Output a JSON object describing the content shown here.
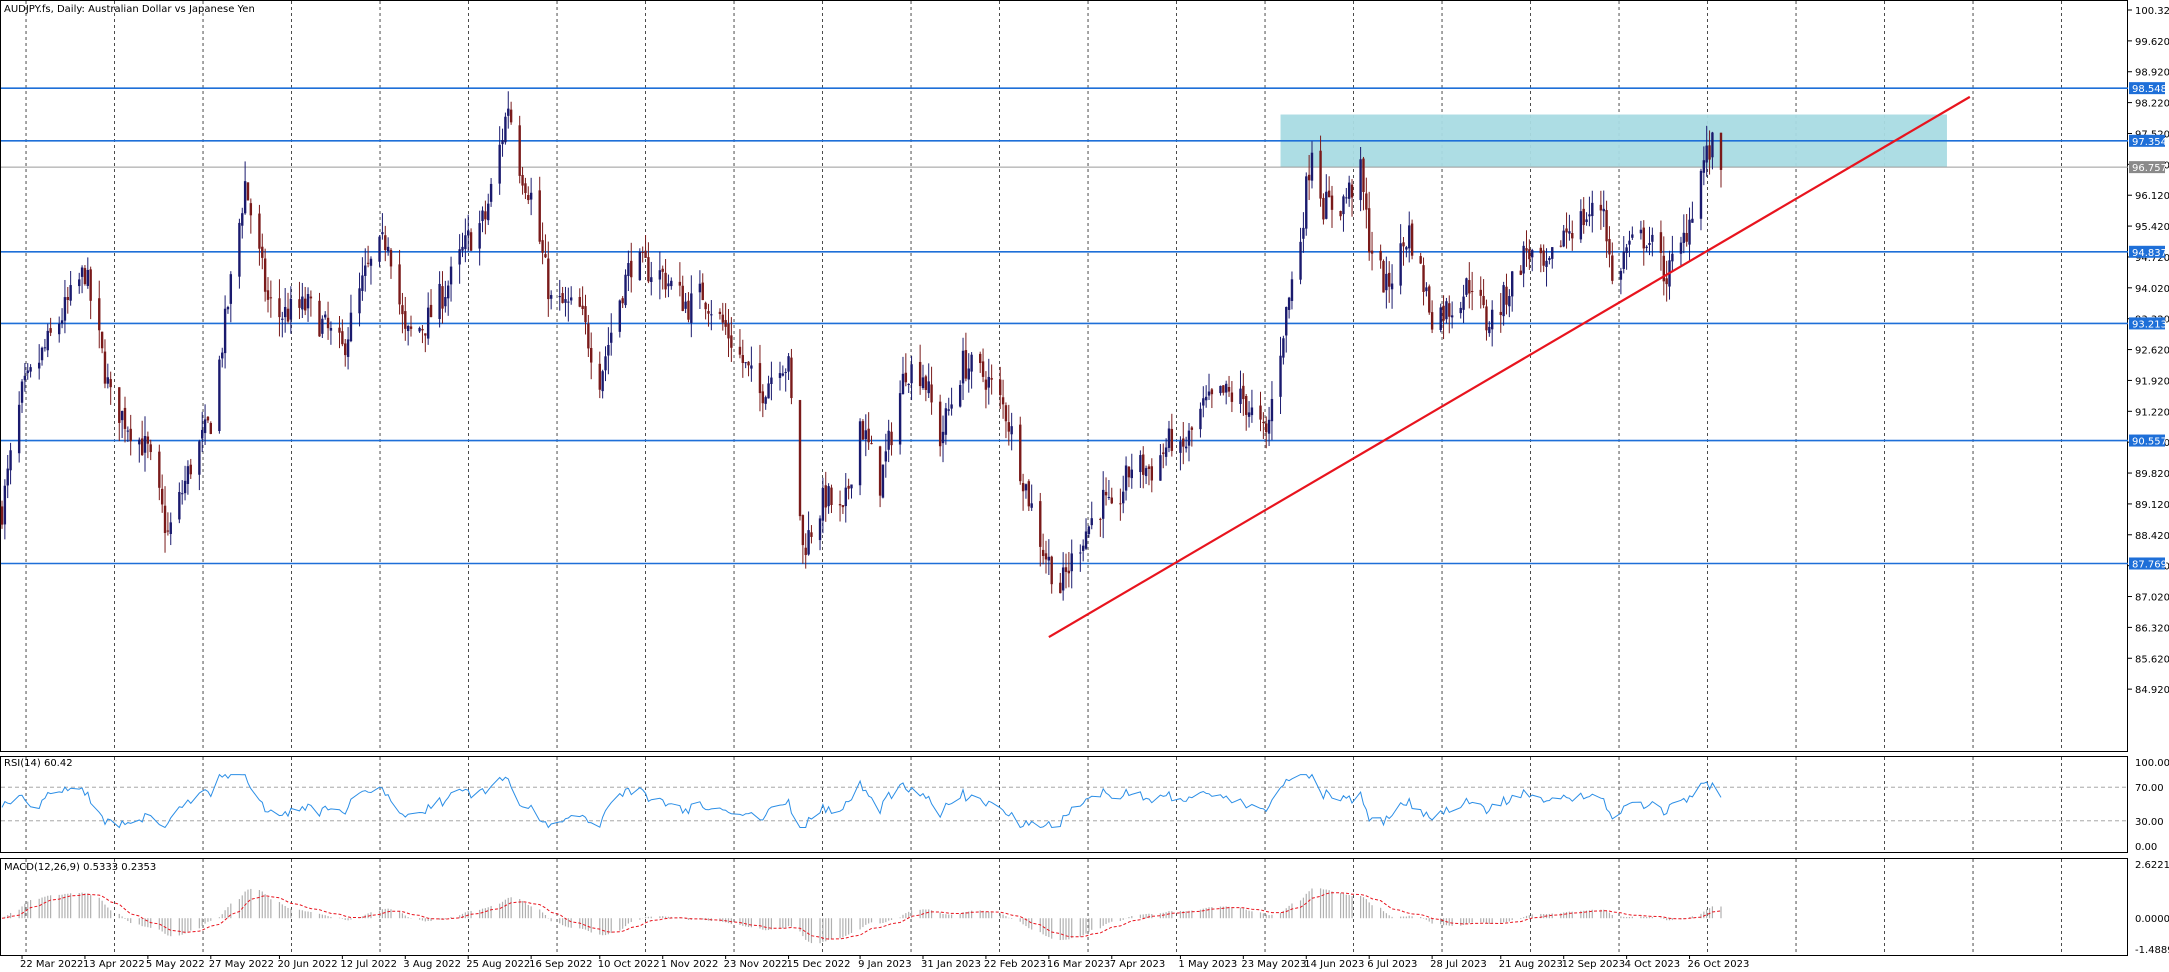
{
  "window": {
    "symbol_title": "AUDJPY.fs, Daily:  Australian Dollar vs Japanese Yen"
  },
  "colors": {
    "background": "#ffffff",
    "grid": "#000000",
    "bull_candle": "#1a1a6e",
    "bear_candle": "#7a1a1a",
    "hline": "#1e6fd8",
    "hline_label_bg": "#1e6fd8",
    "trendline": "#e8141e",
    "zone": "#a9dbe3",
    "rsi_line": "#2b8ee6",
    "macd_signal": "#e8141e",
    "macd_hist": "#b0b0b0"
  },
  "chart_data": [
    {
      "type": "candlestick",
      "name": "price",
      "title": "AUDJPY.fs, Daily:  Australian Dollar vs Japanese Yen",
      "ylim": [
        84.22,
        100.32
      ],
      "y_ticks": [
        "100.320",
        "99.620",
        "98.920",
        "98.220",
        "97.520",
        "96.820",
        "96.120",
        "95.420",
        "94.720",
        "94.020",
        "93.320",
        "92.620",
        "91.920",
        "91.220",
        "90.520",
        "89.820",
        "89.120",
        "88.420",
        "87.720",
        "87.020",
        "86.320",
        "85.620",
        "84.920"
      ],
      "x_labels": [
        "22 Mar 2022",
        "13 Apr 2022",
        "5 May 2022",
        "27 May 2022",
        "20 Jun 2022",
        "12 Jul 2022",
        "3 Aug 2022",
        "25 Aug 2022",
        "16 Sep 2022",
        "10 Oct 2022",
        "1 Nov 2022",
        "23 Nov 2022",
        "15 Dec 2022",
        "9 Jan 2023",
        "31 Jan 2023",
        "22 Feb 2023",
        "16 Mar 2023",
        "7 Apr 2023",
        "1 May 2023",
        "23 May 2023",
        "14 Jun 2023",
        "6 Jul 2023",
        "28 Jul 2023",
        "21 Aug 2023",
        "12 Sep 2023",
        "4 Oct 2023",
        "26 Oct 2023"
      ],
      "horizontal_levels": [
        {
          "value": 98.548,
          "label": "98.548",
          "style": "line"
        },
        {
          "value": 97.354,
          "label": "97.354",
          "style": "line"
        },
        {
          "value": 96.757,
          "label": "96.757",
          "style": "current-price"
        },
        {
          "value": 94.837,
          "label": "94.837",
          "style": "line"
        },
        {
          "value": 93.213,
          "label": "93.213",
          "style": "line"
        },
        {
          "value": 90.557,
          "label": "90.557",
          "style": "line"
        },
        {
          "value": 87.769,
          "label": "87.769",
          "style": "line"
        }
      ],
      "zone": {
        "from_date": "2023-06-05",
        "to_date": "2024-01-24",
        "low": 96.757,
        "high": 97.95
      },
      "trendline": {
        "start": {
          "date": "2023-03-16",
          "price": 86.1
        },
        "end": {
          "date": "2024-02-01",
          "price": 98.35
        }
      },
      "path_anchors": [
        {
          "date": "2022-03-15",
          "price": 89.0
        },
        {
          "date": "2022-03-22",
          "price": 91.6
        },
        {
          "date": "2022-04-05",
          "price": 93.4
        },
        {
          "date": "2022-04-13",
          "price": 94.4
        },
        {
          "date": "2022-04-22",
          "price": 91.5
        },
        {
          "date": "2022-05-05",
          "price": 90.3
        },
        {
          "date": "2022-05-12",
          "price": 88.4
        },
        {
          "date": "2022-05-20",
          "price": 90.0
        },
        {
          "date": "2022-05-27",
          "price": 91.0
        },
        {
          "date": "2022-06-01",
          "price": 93.2
        },
        {
          "date": "2022-06-08",
          "price": 96.4
        },
        {
          "date": "2022-06-16",
          "price": 93.7
        },
        {
          "date": "2022-06-20",
          "price": 93.4
        },
        {
          "date": "2022-06-30",
          "price": 93.6
        },
        {
          "date": "2022-07-12",
          "price": 92.6
        },
        {
          "date": "2022-07-20",
          "price": 94.3
        },
        {
          "date": "2022-07-28",
          "price": 95.2
        },
        {
          "date": "2022-08-03",
          "price": 92.9
        },
        {
          "date": "2022-08-10",
          "price": 93.2
        },
        {
          "date": "2022-08-18",
          "price": 94.1
        },
        {
          "date": "2022-08-25",
          "price": 95.1
        },
        {
          "date": "2022-08-31",
          "price": 95.6
        },
        {
          "date": "2022-09-06",
          "price": 97.5
        },
        {
          "date": "2022-09-08",
          "price": 98.2
        },
        {
          "date": "2022-09-12",
          "price": 96.8
        },
        {
          "date": "2022-09-16",
          "price": 96.1
        },
        {
          "date": "2022-09-23",
          "price": 93.7
        },
        {
          "date": "2022-10-03",
          "price": 93.5
        },
        {
          "date": "2022-10-10",
          "price": 92.0
        },
        {
          "date": "2022-10-17",
          "price": 93.8
        },
        {
          "date": "2022-10-21",
          "price": 94.6
        },
        {
          "date": "2022-11-01",
          "price": 94.3
        },
        {
          "date": "2022-11-10",
          "price": 93.6
        },
        {
          "date": "2022-11-15",
          "price": 93.9
        },
        {
          "date": "2022-11-23",
          "price": 93.1
        },
        {
          "date": "2022-11-30",
          "price": 92.2
        },
        {
          "date": "2022-12-05",
          "price": 91.6
        },
        {
          "date": "2022-12-12",
          "price": 92.4
        },
        {
          "date": "2022-12-15",
          "price": 92.2
        },
        {
          "date": "2022-12-20",
          "price": 88.1
        },
        {
          "date": "2022-12-28",
          "price": 89.3
        },
        {
          "date": "2023-01-03",
          "price": 88.8
        },
        {
          "date": "2023-01-09",
          "price": 91.0
        },
        {
          "date": "2023-01-16",
          "price": 89.6
        },
        {
          "date": "2023-01-25",
          "price": 92.2
        },
        {
          "date": "2023-01-31",
          "price": 92.1
        },
        {
          "date": "2023-02-06",
          "price": 90.6
        },
        {
          "date": "2023-02-14",
          "price": 92.3
        },
        {
          "date": "2023-02-22",
          "price": 92.0
        },
        {
          "date": "2023-03-01",
          "price": 91.2
        },
        {
          "date": "2023-03-08",
          "price": 89.5
        },
        {
          "date": "2023-03-14",
          "price": 88.1
        },
        {
          "date": "2023-03-20",
          "price": 87.2
        },
        {
          "date": "2023-03-27",
          "price": 88.3
        },
        {
          "date": "2023-04-04",
          "price": 89.2
        },
        {
          "date": "2023-04-07",
          "price": 88.8
        },
        {
          "date": "2023-04-14",
          "price": 90.0
        },
        {
          "date": "2023-04-21",
          "price": 89.9
        },
        {
          "date": "2023-04-28",
          "price": 90.6
        },
        {
          "date": "2023-05-01",
          "price": 90.2
        },
        {
          "date": "2023-05-09",
          "price": 91.3
        },
        {
          "date": "2023-05-16",
          "price": 91.6
        },
        {
          "date": "2023-05-23",
          "price": 91.5
        },
        {
          "date": "2023-05-31",
          "price": 90.6
        },
        {
          "date": "2023-06-06",
          "price": 93.1
        },
        {
          "date": "2023-06-12",
          "price": 95.2
        },
        {
          "date": "2023-06-16",
          "price": 97.3
        },
        {
          "date": "2023-06-20",
          "price": 95.9
        },
        {
          "date": "2023-06-26",
          "price": 95.9
        },
        {
          "date": "2023-07-03",
          "price": 96.6
        },
        {
          "date": "2023-07-06",
          "price": 95.1
        },
        {
          "date": "2023-07-12",
          "price": 94.0
        },
        {
          "date": "2023-07-20",
          "price": 95.3
        },
        {
          "date": "2023-07-28",
          "price": 93.4
        },
        {
          "date": "2023-08-04",
          "price": 93.6
        },
        {
          "date": "2023-08-11",
          "price": 94.2
        },
        {
          "date": "2023-08-16",
          "price": 93.2
        },
        {
          "date": "2023-08-21",
          "price": 93.6
        },
        {
          "date": "2023-08-30",
          "price": 94.9
        },
        {
          "date": "2023-09-06",
          "price": 94.3
        },
        {
          "date": "2023-09-12",
          "price": 95.3
        },
        {
          "date": "2023-09-19",
          "price": 95.6
        },
        {
          "date": "2023-09-26",
          "price": 95.9
        },
        {
          "date": "2023-09-29",
          "price": 94.1
        },
        {
          "date": "2023-10-04",
          "price": 94.9
        },
        {
          "date": "2023-10-11",
          "price": 95.2
        },
        {
          "date": "2023-10-18",
          "price": 94.3
        },
        {
          "date": "2023-10-23",
          "price": 94.9
        },
        {
          "date": "2023-10-26",
          "price": 95.6
        },
        {
          "date": "2023-10-31",
          "price": 96.9
        },
        {
          "date": "2023-11-03",
          "price": 97.2
        },
        {
          "date": "2023-11-06",
          "price": 96.76
        }
      ]
    },
    {
      "type": "line",
      "name": "rsi",
      "label": "RSI(14) 60.42",
      "ylim": [
        0,
        100
      ],
      "y_ticks": [
        "100.00",
        "70.00",
        "30.00",
        "0.00"
      ],
      "levels": [
        70,
        30
      ]
    },
    {
      "type": "histogram+line",
      "name": "macd",
      "label": "MACD(12,26,9) 0.5333 0.2353",
      "ylim": [
        -1.4889,
        2.6221
      ],
      "y_ticks": [
        "2.6221",
        "0.0000",
        "-1.4889"
      ]
    }
  ]
}
